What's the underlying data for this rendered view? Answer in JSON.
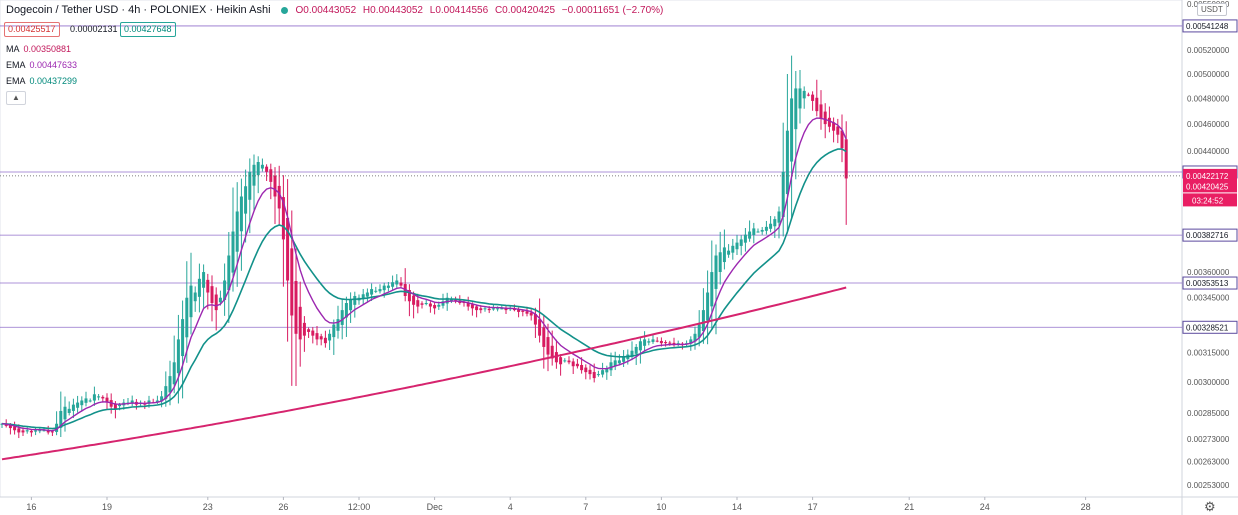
{
  "header": {
    "symbol": "Dogecoin / Tether USD · 4h · POLONIEX · Heikin Ashi",
    "open": "O0.00443052",
    "high": "H0.00443052",
    "low": "L0.00414556",
    "close": "C0.00420425",
    "change": "−0.00011651 (−2.70%)"
  },
  "price_boxes": {
    "bid": "0.00425517",
    "spread": "0.00002131",
    "ask": "0.00427648"
  },
  "indicators": [
    {
      "label": "MA",
      "value": "0.00350881"
    },
    {
      "label": "EMA",
      "value": "0.00447633"
    },
    {
      "label": "EMA",
      "value": "0.00437299"
    }
  ],
  "collapse_icon": "chevron-up",
  "currency_tag": "USDT",
  "settings_icon": "gear",
  "colors": {
    "up": "#26a69a",
    "down": "#d81b60",
    "ma": "#d6246e",
    "ema_fast": "#9c27b0",
    "ema_slow": "#12918a",
    "hline": "#7e57c2",
    "current_price": "#e91e63"
  },
  "chart_data": {
    "type": "candlestick",
    "chart_style": "Heikin Ashi",
    "pair": "DOGE/USDT",
    "interval": "4h",
    "y_axis": {
      "scale": "log",
      "range": [
        0.00248,
        0.00565
      ],
      "ticks": [
        "0.00253000",
        "0.00263000",
        "0.00273000",
        "0.00285000",
        "0.00300000",
        "0.00315000",
        "0.00345000",
        "0.00360000",
        "0.00440000",
        "0.00460000",
        "0.00480000",
        "0.00500000",
        "0.00520000"
      ],
      "top_partial_tick": "0.00550000"
    },
    "x_axis": {
      "labels": [
        "16",
        "19",
        "23",
        "26",
        "12:00",
        "Dec",
        "4",
        "7",
        "10",
        "14",
        "17",
        "21",
        "24",
        "28"
      ],
      "label_slots": [
        7,
        25,
        49,
        67,
        85,
        103,
        121,
        139,
        157,
        175,
        193,
        216,
        234,
        258
      ]
    },
    "horizontal_lines": [
      "0.00541248",
      "0.00424920",
      "0.00382716",
      "0.00353513",
      "0.00328521"
    ],
    "current_prices": {
      "a": "0.00422172",
      "b": "0.00420425",
      "countdown": "03:24:52"
    },
    "ma_end_label": "0.00350881",
    "close_series": [
      0.0028,
      0.00279,
      0.00278,
      0.00277,
      0.00276,
      0.00276,
      0.00277,
      0.00276,
      0.00277,
      0.00277,
      0.00277,
      0.00276,
      0.00276,
      0.0028,
      0.00286,
      0.00288,
      0.00287,
      0.00289,
      0.0029,
      0.00291,
      0.00292,
      0.00291,
      0.00294,
      0.00293,
      0.00292,
      0.0029,
      0.00288,
      0.00287,
      0.00289,
      0.0029,
      0.0029,
      0.00291,
      0.00289,
      0.0029,
      0.00289,
      0.00291,
      0.0029,
      0.00291,
      0.00293,
      0.00298,
      0.00303,
      0.0031,
      0.00322,
      0.00333,
      0.00345,
      0.00352,
      0.00348,
      0.00356,
      0.0036,
      0.00348,
      0.00342,
      0.00338,
      0.00345,
      0.00355,
      0.0037,
      0.00385,
      0.00398,
      0.00408,
      0.00415,
      0.00425,
      0.0043,
      0.00432,
      0.0043,
      0.00425,
      0.00418,
      0.00408,
      0.004,
      0.0038,
      0.00355,
      0.00335,
      0.00325,
      0.00322,
      0.00324,
      0.00326,
      0.00324,
      0.00322,
      0.00322,
      0.0032,
      0.00325,
      0.0033,
      0.00333,
      0.00338,
      0.00342,
      0.00344,
      0.00346,
      0.00345,
      0.00347,
      0.00348,
      0.0035,
      0.00349,
      0.0035,
      0.00352,
      0.00352,
      0.00354,
      0.00355,
      0.00352,
      0.00346,
      0.00343,
      0.00341,
      0.0034,
      0.00341,
      0.00342,
      0.0034,
      0.00339,
      0.00341,
      0.00343,
      0.00345,
      0.00344,
      0.00343,
      0.00342,
      0.00342,
      0.0034,
      0.00339,
      0.00338,
      0.00338,
      0.00339,
      0.00338,
      0.00339,
      0.00339,
      0.00339,
      0.00338,
      0.00339,
      0.00338,
      0.00337,
      0.00337,
      0.00336,
      0.00335,
      0.0033,
      0.00324,
      0.00318,
      0.00314,
      0.00312,
      0.0031,
      0.00309,
      0.00311,
      0.0031,
      0.00308,
      0.00308,
      0.00306,
      0.00305,
      0.00304,
      0.00302,
      0.00304,
      0.00306,
      0.00307,
      0.0031,
      0.00311,
      0.00311,
      0.00313,
      0.00314,
      0.00316,
      0.00318,
      0.00321,
      0.00322,
      0.00321,
      0.00322,
      0.00321,
      0.0032,
      0.0032,
      0.0032,
      0.00319,
      0.0032,
      0.00319,
      0.0032,
      0.00322,
      0.00325,
      0.0033,
      0.00338,
      0.00348,
      0.0036,
      0.0037,
      0.00372,
      0.00375,
      0.00373,
      0.00376,
      0.00378,
      0.0038,
      0.00383,
      0.00385,
      0.00387,
      0.00385,
      0.00386,
      0.00388,
      0.0039,
      0.00393,
      0.00398,
      0.00425,
      0.00455,
      0.0048,
      0.00488,
      0.00488,
      0.00486,
      0.00483,
      0.00478,
      0.0047,
      0.00464,
      0.0046,
      0.00458,
      0.00455,
      0.00452,
      0.00442,
      0.004204
    ]
  }
}
